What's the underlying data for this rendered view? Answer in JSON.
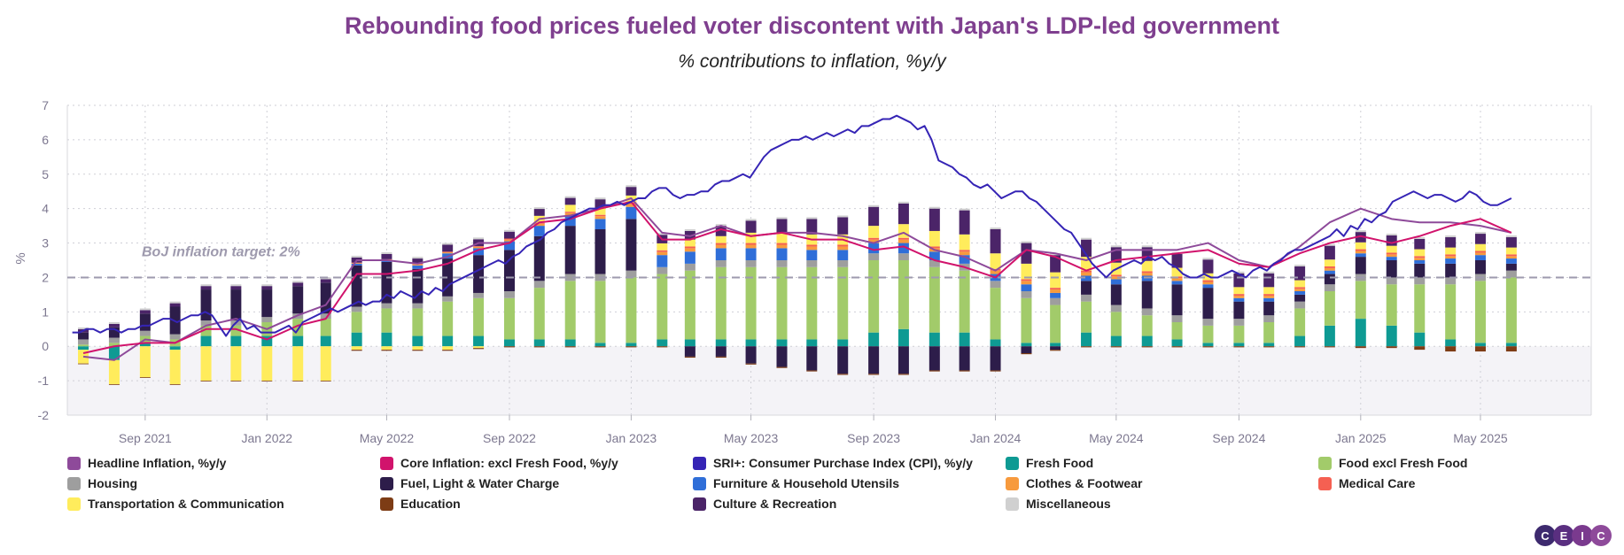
{
  "chart_data": {
    "type": "bar",
    "title": "Rebounding food prices fueled voter discontent with Japan's LDP-led government",
    "subtitle": "% contributions to inflation, %y/y",
    "ylabel": "%",
    "ylim": [
      -2,
      7
    ],
    "yticks": [
      -2,
      -1,
      0,
      1,
      2,
      3,
      4,
      5,
      6,
      7
    ],
    "xlabels": [
      "Sep 2021",
      "Jan 2022",
      "May 2022",
      "Sep 2022",
      "Jan 2023",
      "May 2023",
      "Sep 2023",
      "Jan 2024",
      "May 2024",
      "Sep 2024",
      "Jan 2025",
      "May 2025"
    ],
    "annotation": {
      "text": "BoJ inflation target: 2%",
      "value": 2
    },
    "months": [
      "2021-07",
      "2021-08",
      "2021-09",
      "2021-10",
      "2021-11",
      "2021-12",
      "2022-01",
      "2022-02",
      "2022-03",
      "2022-04",
      "2022-05",
      "2022-06",
      "2022-07",
      "2022-08",
      "2022-09",
      "2022-10",
      "2022-11",
      "2022-12",
      "2023-01",
      "2023-02",
      "2023-03",
      "2023-04",
      "2023-05",
      "2023-06",
      "2023-07",
      "2023-08",
      "2023-09",
      "2023-10",
      "2023-11",
      "2023-12",
      "2024-01",
      "2024-02",
      "2024-03",
      "2024-04",
      "2024-05",
      "2024-06",
      "2024-07",
      "2024-08",
      "2024-09",
      "2024-10",
      "2024-11",
      "2024-12",
      "2025-01",
      "2025-02",
      "2025-03",
      "2025-04",
      "2025-05",
      "2025-06"
    ],
    "stacked_series": [
      {
        "name": "Fresh Food",
        "color": "#0e9a93",
        "values": [
          -0.1,
          -0.4,
          0.1,
          -0.1,
          0.3,
          0.3,
          0.3,
          0.3,
          0.3,
          0.4,
          0.4,
          0.3,
          0.3,
          0.3,
          0.2,
          0.2,
          0.2,
          0.1,
          0.1,
          0.2,
          0.2,
          0.2,
          0.2,
          0.2,
          0.2,
          0.2,
          0.4,
          0.5,
          0.4,
          0.4,
          0.2,
          0.1,
          0.1,
          0.4,
          0.3,
          0.3,
          0.2,
          0.1,
          0.1,
          0.1,
          0.3,
          0.6,
          0.8,
          0.6,
          0.4,
          0.2,
          0.1,
          0.1
        ]
      },
      {
        "name": "Food excl Fresh Food",
        "color": "#a2cb6a",
        "values": [
          0.05,
          0.1,
          0.2,
          0.2,
          0.3,
          0.3,
          0.4,
          0.5,
          0.5,
          0.6,
          0.7,
          0.8,
          1.0,
          1.1,
          1.2,
          1.5,
          1.7,
          1.8,
          1.9,
          1.9,
          2.0,
          2.1,
          2.1,
          2.1,
          2.1,
          2.1,
          2.1,
          2.0,
          1.9,
          1.8,
          1.5,
          1.3,
          1.1,
          0.9,
          0.7,
          0.6,
          0.5,
          0.5,
          0.5,
          0.6,
          0.8,
          1.0,
          1.1,
          1.2,
          1.4,
          1.6,
          1.8,
          1.9
        ]
      },
      {
        "name": "Housing",
        "color": "#9e9e9e",
        "values": [
          0.15,
          0.15,
          0.15,
          0.15,
          0.15,
          0.15,
          0.15,
          0.15,
          0.15,
          0.15,
          0.15,
          0.15,
          0.15,
          0.15,
          0.2,
          0.2,
          0.2,
          0.2,
          0.2,
          0.2,
          0.2,
          0.2,
          0.2,
          0.2,
          0.2,
          0.2,
          0.2,
          0.2,
          0.2,
          0.2,
          0.2,
          0.2,
          0.2,
          0.2,
          0.2,
          0.2,
          0.2,
          0.2,
          0.2,
          0.2,
          0.2,
          0.2,
          0.2,
          0.2,
          0.2,
          0.2,
          0.2,
          0.2
        ]
      },
      {
        "name": "Fuel, Light & Water Charge",
        "color": "#2d1d4a",
        "values": [
          0.2,
          0.3,
          0.5,
          0.8,
          0.9,
          0.9,
          0.8,
          0.8,
          0.9,
          1.2,
          1.2,
          1.0,
          1.1,
          1.1,
          1.2,
          1.3,
          1.4,
          1.3,
          1.5,
          0.0,
          -0.3,
          -0.3,
          -0.5,
          -0.6,
          -0.7,
          -0.8,
          -0.8,
          -0.8,
          -0.7,
          -0.7,
          -0.7,
          -0.2,
          -0.1,
          0.4,
          0.6,
          0.8,
          0.9,
          0.9,
          0.5,
          0.4,
          0.2,
          0.3,
          0.5,
          0.5,
          0.4,
          0.4,
          0.4,
          0.2
        ]
      },
      {
        "name": "Furniture & Household Utensils",
        "color": "#2f6ed8",
        "values": [
          0.0,
          0.0,
          0.0,
          0.0,
          0.0,
          0.0,
          0.0,
          0.0,
          0.0,
          0.05,
          0.05,
          0.1,
          0.15,
          0.2,
          0.25,
          0.3,
          0.3,
          0.3,
          0.35,
          0.35,
          0.35,
          0.35,
          0.35,
          0.35,
          0.3,
          0.3,
          0.3,
          0.3,
          0.25,
          0.25,
          0.2,
          0.2,
          0.15,
          0.15,
          0.15,
          0.15,
          0.1,
          0.1,
          0.1,
          0.1,
          0.1,
          0.1,
          0.1,
          0.1,
          0.1,
          0.15,
          0.15,
          0.15
        ]
      },
      {
        "name": "Clothes & Footwear",
        "color": "#f79a3d",
        "values": [
          0.0,
          0.0,
          0.0,
          0.0,
          0.0,
          0.0,
          0.0,
          0.0,
          0.0,
          0.02,
          0.02,
          0.03,
          0.03,
          0.04,
          0.05,
          0.06,
          0.07,
          0.08,
          0.08,
          0.09,
          0.1,
          0.1,
          0.1,
          0.1,
          0.1,
          0.1,
          0.1,
          0.1,
          0.1,
          0.1,
          0.1,
          0.1,
          0.1,
          0.1,
          0.08,
          0.08,
          0.08,
          0.07,
          0.07,
          0.07,
          0.07,
          0.07,
          0.07,
          0.07,
          0.07,
          0.07,
          0.07,
          0.07
        ]
      },
      {
        "name": "Medical Care",
        "color": "#f56052",
        "values": [
          0.0,
          0.0,
          0.0,
          0.0,
          0.0,
          0.0,
          0.0,
          0.0,
          0.0,
          0.01,
          0.01,
          0.02,
          0.02,
          0.02,
          0.03,
          0.03,
          0.04,
          0.04,
          0.05,
          0.05,
          0.05,
          0.05,
          0.05,
          0.05,
          0.05,
          0.05,
          0.05,
          0.05,
          0.05,
          0.05,
          0.05,
          0.05,
          0.05,
          0.05,
          0.05,
          0.05,
          0.05,
          0.05,
          0.05,
          0.05,
          0.05,
          0.05,
          0.05,
          0.05,
          0.05,
          0.05,
          0.05,
          0.05
        ]
      },
      {
        "name": "Transportation & Communication",
        "color": "#ffec5c",
        "values": [
          -0.4,
          -0.7,
          -0.9,
          -1.0,
          -1.0,
          -1.0,
          -1.0,
          -1.0,
          -1.0,
          -0.1,
          -0.1,
          -0.1,
          -0.1,
          -0.05,
          0.0,
          0.2,
          0.2,
          0.2,
          0.2,
          0.2,
          0.2,
          0.2,
          0.3,
          0.3,
          0.3,
          0.3,
          0.35,
          0.4,
          0.45,
          0.45,
          0.45,
          0.45,
          0.45,
          0.4,
          0.35,
          0.3,
          0.25,
          0.2,
          0.2,
          0.2,
          0.2,
          0.2,
          0.2,
          0.2,
          0.2,
          0.2,
          0.2,
          0.2
        ]
      },
      {
        "name": "Education",
        "color": "#7d3c15",
        "values": [
          -0.02,
          -0.02,
          -0.02,
          -0.02,
          -0.02,
          -0.02,
          -0.02,
          -0.02,
          -0.02,
          -0.03,
          -0.03,
          -0.03,
          -0.03,
          -0.03,
          -0.03,
          -0.03,
          -0.03,
          -0.03,
          -0.03,
          -0.03,
          -0.03,
          -0.03,
          -0.03,
          -0.03,
          -0.03,
          -0.03,
          -0.03,
          -0.03,
          -0.03,
          -0.03,
          -0.03,
          -0.03,
          -0.03,
          -0.03,
          -0.03,
          -0.03,
          -0.03,
          -0.03,
          -0.03,
          -0.03,
          -0.03,
          -0.03,
          -0.05,
          -0.05,
          -0.1,
          -0.15,
          -0.15,
          -0.15
        ]
      },
      {
        "name": "Culture & Recreation",
        "color": "#4b2468",
        "values": [
          0.1,
          0.1,
          0.1,
          0.1,
          0.1,
          0.1,
          0.1,
          0.1,
          0.1,
          0.15,
          0.15,
          0.15,
          0.2,
          0.2,
          0.2,
          0.2,
          0.2,
          0.25,
          0.25,
          0.25,
          0.25,
          0.3,
          0.35,
          0.4,
          0.45,
          0.5,
          0.55,
          0.6,
          0.65,
          0.7,
          0.7,
          0.6,
          0.5,
          0.5,
          0.45,
          0.4,
          0.4,
          0.4,
          0.4,
          0.4,
          0.4,
          0.4,
          0.3,
          0.3,
          0.3,
          0.3,
          0.3,
          0.3
        ]
      },
      {
        "name": "Miscellaneous",
        "color": "#d0d0d0",
        "values": [
          0.05,
          0.05,
          0.05,
          0.05,
          0.05,
          0.05,
          0.05,
          0.05,
          0.05,
          0.05,
          0.05,
          0.05,
          0.05,
          0.05,
          0.05,
          0.05,
          0.05,
          0.05,
          0.05,
          0.05,
          0.05,
          0.05,
          0.05,
          0.05,
          0.05,
          0.05,
          0.05,
          0.05,
          0.05,
          0.05,
          0.05,
          0.05,
          0.05,
          0.05,
          0.05,
          0.05,
          0.05,
          0.05,
          0.05,
          0.05,
          0.05,
          0.05,
          0.05,
          0.05,
          0.05,
          0.05,
          0.05,
          0.05
        ]
      }
    ],
    "line_series": [
      {
        "name": "Headline Inflation, %y/y",
        "color": "#8e4a9a",
        "values": [
          -0.3,
          -0.4,
          0.2,
          0.1,
          0.6,
          0.8,
          0.5,
          0.9,
          1.2,
          2.5,
          2.5,
          2.4,
          2.6,
          3.0,
          3.0,
          3.7,
          3.8,
          4.0,
          4.3,
          3.3,
          3.2,
          3.5,
          3.2,
          3.3,
          3.3,
          3.2,
          3.0,
          3.3,
          2.8,
          2.6,
          2.2,
          2.8,
          2.7,
          2.5,
          2.8,
          2.8,
          2.8,
          3.0,
          2.5,
          2.3,
          2.9,
          3.6,
          4.0,
          3.7,
          3.6,
          3.6,
          3.5,
          3.3
        ]
      },
      {
        "name": "Core Inflation: excl Fresh Food, %y/y",
        "color": "#d1136c",
        "values": [
          -0.2,
          0.0,
          0.1,
          0.1,
          0.5,
          0.5,
          0.2,
          0.6,
          0.8,
          2.1,
          2.1,
          2.2,
          2.4,
          2.8,
          3.0,
          3.6,
          3.7,
          4.0,
          4.2,
          3.1,
          3.1,
          3.4,
          3.2,
          3.3,
          3.1,
          3.1,
          2.8,
          2.9,
          2.5,
          2.3,
          2.0,
          2.8,
          2.6,
          2.2,
          2.5,
          2.6,
          2.7,
          2.8,
          2.4,
          2.3,
          2.7,
          3.0,
          3.2,
          3.0,
          3.2,
          3.5,
          3.7,
          3.3
        ]
      }
    ],
    "sri_series": {
      "name": "SRI+: Consumer Purchase Index (CPI), %y/y",
      "color": "#3524b5",
      "x_start": "2021-06-20",
      "step_days": 7,
      "values": [
        0.4,
        0.4,
        0.5,
        0.5,
        0.4,
        0.5,
        0.5,
        0.4,
        0.5,
        0.5,
        0.6,
        0.6,
        0.7,
        0.8,
        0.8,
        0.7,
        0.8,
        0.9,
        0.9,
        1.0,
        0.9,
        0.6,
        0.3,
        0.6,
        0.8,
        0.5,
        0.6,
        0.4,
        0.4,
        0.4,
        0.5,
        0.6,
        0.4,
        0.7,
        0.8,
        0.9,
        1.0,
        1.1,
        1.0,
        1.1,
        1.2,
        1.3,
        1.2,
        1.3,
        1.3,
        1.5,
        1.4,
        1.6,
        1.5,
        1.4,
        1.6,
        1.5,
        1.7,
        1.6,
        1.8,
        1.9,
        2.0,
        2.1,
        2.2,
        2.3,
        2.4,
        2.5,
        2.4,
        2.6,
        2.7,
        2.9,
        3.0,
        3.1,
        3.3,
        3.4,
        3.6,
        3.7,
        3.8,
        3.9,
        4.0,
        4.0,
        4.1,
        4.1,
        4.2,
        4.1,
        4.2,
        4.3,
        4.3,
        4.5,
        4.6,
        4.6,
        4.4,
        4.3,
        4.4,
        4.4,
        4.5,
        4.5,
        4.7,
        4.8,
        4.8,
        4.9,
        5.0,
        4.9,
        5.2,
        5.5,
        5.7,
        5.8,
        5.9,
        6.0,
        6.0,
        6.1,
        6.0,
        6.1,
        6.2,
        6.1,
        6.2,
        6.3,
        6.2,
        6.4,
        6.4,
        6.5,
        6.6,
        6.6,
        6.7,
        6.6,
        6.5,
        6.3,
        6.4,
        6.0,
        5.4,
        5.3,
        5.2,
        5.0,
        4.9,
        4.7,
        4.6,
        4.7,
        4.5,
        4.3,
        4.4,
        4.5,
        4.5,
        4.3,
        4.2,
        4.0,
        3.8,
        3.6,
        3.4,
        3.3,
        3.0,
        2.7,
        2.4,
        2.2,
        2.0,
        2.2,
        2.3,
        2.4,
        2.5,
        2.4,
        2.6,
        2.5,
        2.6,
        2.4,
        2.3,
        2.1,
        2.0,
        2.0,
        2.1,
        2.0,
        2.0,
        2.1,
        2.2,
        2.1,
        2.0,
        2.2,
        2.3,
        2.2,
        2.4,
        2.5,
        2.7,
        2.8,
        2.8,
        2.9,
        3.0,
        3.1,
        3.2,
        3.4,
        3.2,
        3.5,
        3.4,
        3.7,
        3.6,
        3.8,
        3.9,
        4.2,
        4.3,
        4.4,
        4.5,
        4.4,
        4.3,
        4.4,
        4.4,
        4.3,
        4.2,
        4.3,
        4.5,
        4.4,
        4.2,
        4.1,
        4.1,
        4.2,
        4.3
      ]
    },
    "legend": [
      {
        "label": "Headline Inflation, %y/y",
        "color": "#8e4a9a"
      },
      {
        "label": "Core Inflation: excl Fresh Food, %y/y",
        "color": "#d1136c"
      },
      {
        "label": "SRI+: Consumer Purchase Index (CPI), %y/y",
        "color": "#3524b5"
      },
      {
        "label": "Fresh Food",
        "color": "#0e9a93"
      },
      {
        "label": "Food excl Fresh Food",
        "color": "#a2cb6a"
      },
      {
        "label": "Housing",
        "color": "#9e9e9e"
      },
      {
        "label": "Fuel, Light & Water Charge",
        "color": "#2d1d4a"
      },
      {
        "label": "Furniture & Household Utensils",
        "color": "#2f6ed8"
      },
      {
        "label": "Clothes & Footwear",
        "color": "#f79a3d"
      },
      {
        "label": "Medical Care",
        "color": "#f56052"
      },
      {
        "label": "Transportation & Communication",
        "color": "#ffec5c"
      },
      {
        "label": "Education",
        "color": "#7d3c15"
      },
      {
        "label": "Culture & Recreation",
        "color": "#4b2468"
      },
      {
        "label": "Miscellaneous",
        "color": "#d0d0d0"
      }
    ],
    "logo": [
      "C",
      "E",
      "I",
      "C"
    ]
  }
}
